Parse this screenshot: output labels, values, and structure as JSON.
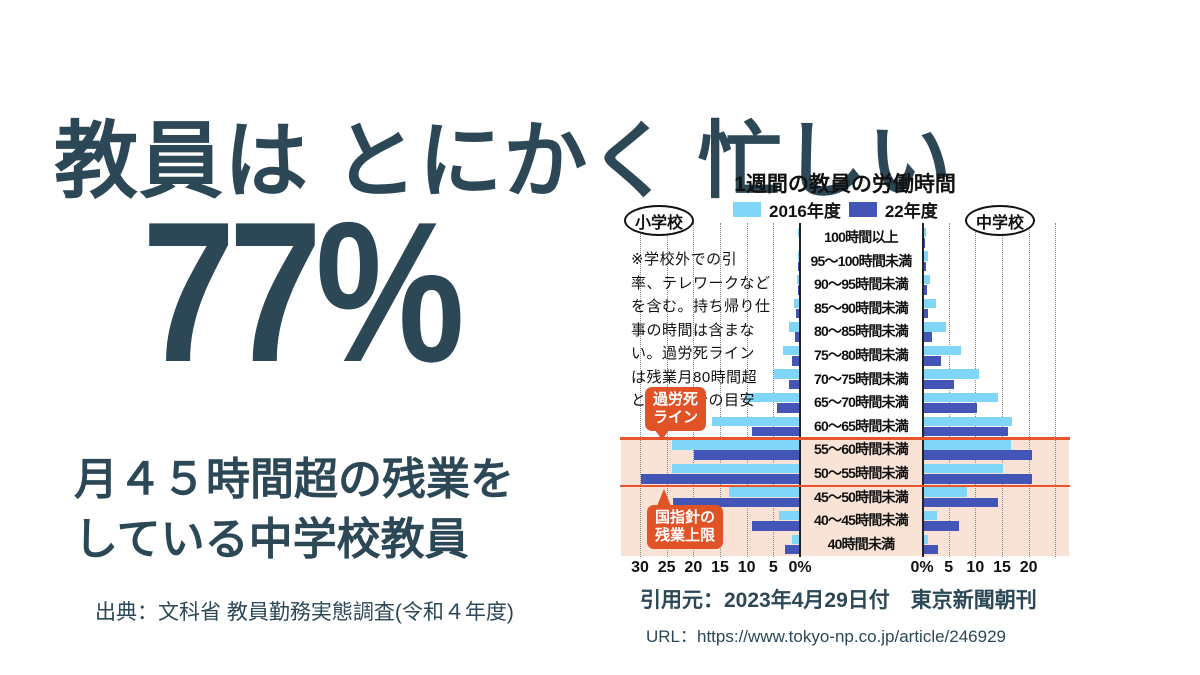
{
  "slide": {
    "title": "教員は とにかく 忙しい",
    "big_stat": "77%",
    "stat_caption": [
      "月４５時間超の残業を",
      "している中学校教員"
    ],
    "source": "出典：文科省 教員勤務実態調査(令和４年度)",
    "citation": "引用元：2023年4月29日付　東京新聞朝刊",
    "citation_url": "URL：https://www.tokyo-np.co.jp/article/246929"
  },
  "colors": {
    "slate_text": "#2c4756",
    "bar_2016": "#7fd6f7",
    "bar_2022": "#4356b8",
    "highlight_band": "#f8e3d6",
    "annotation_red": "#e25227",
    "divider_orange": "#e8542c",
    "grid": "#888888",
    "axis": "#222222"
  },
  "chart_data": {
    "type": "bar",
    "orientation": "horizontal-butterfly",
    "title": "1週間の教員の労働時間",
    "legend": [
      {
        "label": "2016年度",
        "color": "#7fd6f7"
      },
      {
        "label": "22年度",
        "color": "#4356b8"
      }
    ],
    "left_group": "小学校",
    "right_group": "中学校",
    "unit": "%",
    "categories": [
      "100時間以上",
      "95～100時間未満",
      "90～95時間未満",
      "85～90時間未満",
      "80～85時間未満",
      "75～80時間未満",
      "70～75時間未満",
      "65～70時間未満",
      "60～65時間未満",
      "55～60時間未満",
      "50～55時間未満",
      "45～50時間未満",
      "40～45時間未満",
      "40時間未満"
    ],
    "series": [
      {
        "name": "小学校 2016年度",
        "values": [
          0.1,
          0.2,
          0.4,
          1.0,
          1.8,
          3.0,
          4.7,
          10.0,
          16.3,
          23.8,
          23.8,
          13.1,
          3.8,
          1.4
        ]
      },
      {
        "name": "小学校 22年度",
        "values": [
          0.0,
          0.1,
          0.2,
          0.5,
          0.8,
          1.3,
          1.9,
          4.1,
          8.8,
          19.7,
          29.7,
          23.6,
          8.9,
          2.7
        ]
      },
      {
        "name": "中学校 2016年度",
        "values": [
          0.3,
          0.7,
          1.2,
          2.2,
          4.2,
          7.0,
          10.3,
          13.8,
          16.5,
          16.3,
          14.8,
          8.1,
          2.4,
          0.8
        ]
      },
      {
        "name": "中学校 22年度",
        "values": [
          0.1,
          0.3,
          0.5,
          0.8,
          1.5,
          3.2,
          5.7,
          10.0,
          15.8,
          20.3,
          20.3,
          13.8,
          6.5,
          2.6
        ]
      }
    ],
    "left_axis_ticks": [
      "30",
      "25",
      "20",
      "15",
      "10",
      "5",
      "0%"
    ],
    "right_axis_ticks": [
      "0%",
      "5",
      "10",
      "15",
      "20"
    ],
    "left_xlim": [
      0,
      30
    ],
    "right_xlim": [
      0,
      25
    ],
    "grid": true,
    "note": "※学校外での引\n率、テレワークなど\nを含む。持ち帰り仕\n事の時間は含まな\nい。過労死ライン\nは残業月80時間超\nとした場合の目安",
    "annotations": [
      {
        "label": "過労死\nライン",
        "divider_above_row": 9
      },
      {
        "label": "国指針の\n残業上限",
        "divider_above_row": 11
      }
    ],
    "shaded_rows": {
      "from": 9,
      "to": 13
    }
  }
}
